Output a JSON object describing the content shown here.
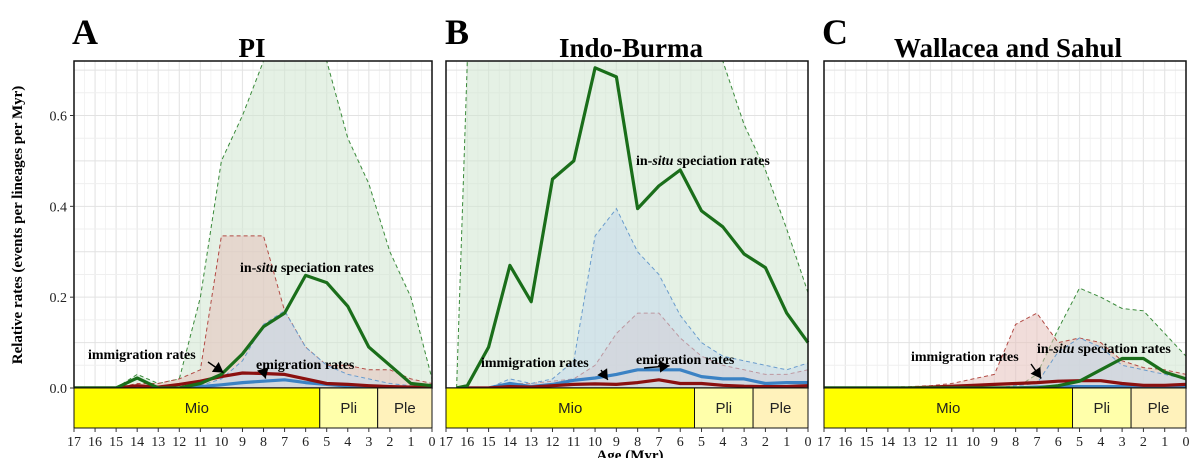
{
  "figure": {
    "ylabel": "Relative rates (events per lineages per Myr)",
    "xlabel": "Age (Myr)"
  },
  "chart_data": [
    {
      "type": "line",
      "letter": "A",
      "title": "PI",
      "xlabel": "Age (Myr)",
      "ylabel": "Relative rates (events per lineages per Myr)",
      "xlim": [
        17,
        0
      ],
      "ylim": [
        0,
        0.72
      ],
      "x_ticks": [
        17,
        16,
        15,
        14,
        13,
        12,
        11,
        10,
        9,
        8,
        7,
        6,
        5,
        4,
        3,
        2,
        1,
        0
      ],
      "y_ticks": [
        0.0,
        0.2,
        0.4,
        0.6
      ],
      "y_tick_labels": [
        "0.0",
        "0.2",
        "0.4",
        "0.6"
      ],
      "epochs": [
        {
          "label": "Mio",
          "start": 17,
          "end": 5.33,
          "color": "#ffff00"
        },
        {
          "label": "Pli",
          "start": 5.33,
          "end": 2.58,
          "color": "#ffffaa"
        },
        {
          "label": "Ple",
          "start": 2.58,
          "end": 0,
          "color": "#fff2bb"
        }
      ],
      "series": [
        {
          "name": "in-situ speciation rates",
          "color": "#1a6e1a",
          "x": [
            17,
            16,
            15,
            14,
            13,
            12,
            11,
            10,
            9,
            8,
            7,
            6,
            5,
            4,
            3,
            2,
            1,
            0
          ],
          "values": [
            0,
            0,
            0,
            0.022,
            0,
            0,
            0.01,
            0.03,
            0.075,
            0.135,
            0.165,
            0.248,
            0.232,
            0.18,
            0.09,
            0.05,
            0.01,
            0.005
          ],
          "upper": [
            0,
            0,
            0,
            0.03,
            0.01,
            0.02,
            0.2,
            0.5,
            0.6,
            0.72,
            0.72,
            0.72,
            0.72,
            0.55,
            0.45,
            0.3,
            0.2,
            0.02
          ]
        },
        {
          "name": "immigration rates",
          "color": "#8b1010",
          "x": [
            17,
            16,
            15,
            14,
            13,
            12,
            11,
            10,
            9,
            8,
            7,
            6,
            5,
            4,
            3,
            2,
            1,
            0
          ],
          "values": [
            0,
            0,
            0,
            0.005,
            0.002,
            0.008,
            0.015,
            0.025,
            0.033,
            0.032,
            0.03,
            0.02,
            0.01,
            0.008,
            0.005,
            0.003,
            0.002,
            0.001
          ],
          "upper": [
            0,
            0,
            0,
            0.01,
            0.01,
            0.02,
            0.04,
            0.335,
            0.335,
            0.335,
            0.17,
            0.09,
            0.05,
            0.05,
            0.04,
            0.04,
            0.02,
            0.01
          ]
        },
        {
          "name": "emigration rates",
          "color": "#3b82c4",
          "x": [
            17,
            16,
            15,
            14,
            13,
            12,
            11,
            10,
            9,
            8,
            7,
            6,
            5,
            4,
            3,
            2,
            1,
            0
          ],
          "values": [
            0,
            0,
            0,
            0,
            0,
            0,
            0.003,
            0.007,
            0.012,
            0.015,
            0.018,
            0.012,
            0.008,
            0.004,
            0.002,
            0.001,
            0,
            0
          ],
          "upper": [
            0,
            0,
            0,
            0,
            0,
            0,
            0.005,
            0.02,
            0.06,
            0.14,
            0.17,
            0.09,
            0.05,
            0.03,
            0.02,
            0.01,
            0.005,
            0
          ]
        }
      ],
      "annotations": [
        {
          "text": "immigration rates",
          "x": 9.9,
          "y": 0.025
        },
        {
          "text": "emigration rates",
          "x": 7.9,
          "y": 0.012
        },
        {
          "prefix": "in-",
          "italic": "situ",
          "suffix": " speciation rates"
        }
      ]
    },
    {
      "type": "line",
      "letter": "B",
      "title": "Indo-Burma",
      "xlabel": "Age (Myr)",
      "ylabel": "Relative rates (events per lineages per Myr)",
      "xlim": [
        17,
        0
      ],
      "ylim": [
        0,
        0.72
      ],
      "x_ticks": [
        17,
        16,
        15,
        14,
        13,
        12,
        11,
        10,
        9,
        8,
        7,
        6,
        5,
        4,
        3,
        2,
        1,
        0
      ],
      "epochs": [
        {
          "label": "Mio",
          "start": 17,
          "end": 5.33,
          "color": "#ffff00"
        },
        {
          "label": "Pli",
          "start": 5.33,
          "end": 2.58,
          "color": "#ffffaa"
        },
        {
          "label": "Ple",
          "start": 2.58,
          "end": 0,
          "color": "#fff2bb"
        }
      ],
      "series": [
        {
          "name": "in-situ speciation rates",
          "color": "#1a6e1a",
          "x": [
            16.5,
            16,
            15,
            14,
            13,
            12,
            11,
            10,
            9,
            8,
            7,
            6,
            5,
            4,
            3,
            2,
            1,
            0
          ],
          "values": [
            0,
            0.005,
            0.09,
            0.27,
            0.19,
            0.46,
            0.5,
            0.705,
            0.685,
            0.395,
            0.445,
            0.48,
            0.39,
            0.355,
            0.295,
            0.265,
            0.165,
            0.1
          ],
          "upper": [
            0,
            0.72,
            0.72,
            0.72,
            0.72,
            0.72,
            0.72,
            0.72,
            0.72,
            0.72,
            0.72,
            0.72,
            0.72,
            0.72,
            0.58,
            0.48,
            0.35,
            0.21
          ]
        },
        {
          "name": "immigration rates",
          "color": "#8b1010",
          "x": [
            16.5,
            16,
            15,
            14,
            13,
            12,
            11,
            10,
            9,
            8,
            7,
            6,
            5,
            4,
            3,
            2,
            1,
            0
          ],
          "values": [
            0,
            0,
            0,
            0.003,
            0.002,
            0.005,
            0.008,
            0.009,
            0.008,
            0.012,
            0.018,
            0.01,
            0.01,
            0.006,
            0.004,
            0.003,
            0.003,
            0.005
          ],
          "upper": [
            0,
            0,
            0,
            0.01,
            0.01,
            0.015,
            0.02,
            0.05,
            0.12,
            0.165,
            0.165,
            0.11,
            0.07,
            0.05,
            0.04,
            0.03,
            0.03,
            0.04
          ]
        },
        {
          "name": "emigration rates",
          "color": "#3b82c4",
          "x": [
            16.5,
            16,
            15,
            14,
            13,
            12,
            11,
            10,
            9,
            8,
            7,
            6,
            5,
            4,
            3,
            2,
            1,
            0
          ],
          "values": [
            0,
            0,
            0,
            0.01,
            0.003,
            0.008,
            0.017,
            0.022,
            0.03,
            0.04,
            0.04,
            0.04,
            0.025,
            0.02,
            0.02,
            0.01,
            0.012,
            0.012
          ],
          "upper": [
            0,
            0,
            0,
            0.02,
            0.01,
            0.02,
            0.06,
            0.335,
            0.395,
            0.3,
            0.25,
            0.16,
            0.1,
            0.07,
            0.06,
            0.05,
            0.04,
            0.055
          ]
        }
      ],
      "annotations": [
        {
          "text": "immigration rates",
          "x": 9.4,
          "y": 0.009
        },
        {
          "text": "emigration rates",
          "x": 6.5,
          "y": 0.04
        },
        {
          "prefix": "in-",
          "italic": "situ",
          "suffix": " speciation rates"
        }
      ]
    },
    {
      "type": "line",
      "letter": "C",
      "title": "Wallacea and Sahul",
      "xlabel": "Age (Myr)",
      "ylabel": "Relative rates (events per lineages per Myr)",
      "xlim": [
        17,
        0
      ],
      "ylim": [
        0,
        0.72
      ],
      "x_ticks": [
        17,
        16,
        15,
        14,
        13,
        12,
        11,
        10,
        9,
        8,
        7,
        6,
        5,
        4,
        3,
        2,
        1,
        0
      ],
      "epochs": [
        {
          "label": "Mio",
          "start": 17,
          "end": 5.33,
          "color": "#ffff00"
        },
        {
          "label": "Pli",
          "start": 5.33,
          "end": 2.58,
          "color": "#ffffaa"
        },
        {
          "label": "Ple",
          "start": 2.58,
          "end": 0,
          "color": "#fff2bb"
        }
      ],
      "series": [
        {
          "name": "in-situ speciation rates",
          "color": "#1a6e1a",
          "x": [
            17,
            16,
            15,
            14,
            13,
            12,
            11,
            10,
            9,
            8,
            7,
            6,
            5,
            4,
            3,
            2,
            1,
            0
          ],
          "values": [
            0,
            0,
            0,
            0,
            0,
            0,
            0,
            0,
            0,
            0,
            0,
            0.005,
            0.015,
            0.04,
            0.065,
            0.065,
            0.035,
            0.02
          ],
          "upper": [
            0,
            0,
            0,
            0,
            0,
            0,
            0,
            0,
            0,
            0,
            0.03,
            0.13,
            0.22,
            0.2,
            0.175,
            0.17,
            0.12,
            0.07
          ]
        },
        {
          "name": "immigration rates",
          "color": "#8b1010",
          "x": [
            17,
            16,
            15,
            14,
            13,
            12,
            11,
            10,
            9,
            8,
            7,
            6,
            5,
            4,
            3,
            2,
            1,
            0
          ],
          "values": [
            0,
            0,
            0,
            0,
            0,
            0.002,
            0.004,
            0.006,
            0.008,
            0.01,
            0.012,
            0.015,
            0.016,
            0.016,
            0.01,
            0.006,
            0.006,
            0.008
          ],
          "upper": [
            0,
            0,
            0,
            0.002,
            0.003,
            0.005,
            0.01,
            0.02,
            0.03,
            0.14,
            0.165,
            0.1,
            0.11,
            0.1,
            0.06,
            0.045,
            0.04,
            0.03
          ]
        },
        {
          "name": "emigration rates",
          "color": "#3b82c4",
          "x": [
            17,
            16,
            15,
            14,
            13,
            12,
            11,
            10,
            9,
            8,
            7,
            6,
            5,
            4,
            3,
            2,
            1,
            0
          ],
          "values": [
            0,
            0,
            0,
            0,
            0,
            0,
            0,
            0,
            0,
            0,
            0.002,
            0.003,
            0.003,
            0.003,
            0.003,
            0.002,
            0.002,
            0.002
          ],
          "upper": [
            0,
            0,
            0,
            0,
            0,
            0,
            0,
            0,
            0,
            0.005,
            0.01,
            0.08,
            0.11,
            0.09,
            0.05,
            0.04,
            0.03,
            0.02
          ]
        }
      ],
      "annotations": [
        {
          "text": "immigration rates",
          "x": 6.8,
          "y": 0.012
        },
        {
          "prefix": "in-",
          "italic": "situ",
          "suffix": " speciation rates"
        }
      ]
    }
  ]
}
